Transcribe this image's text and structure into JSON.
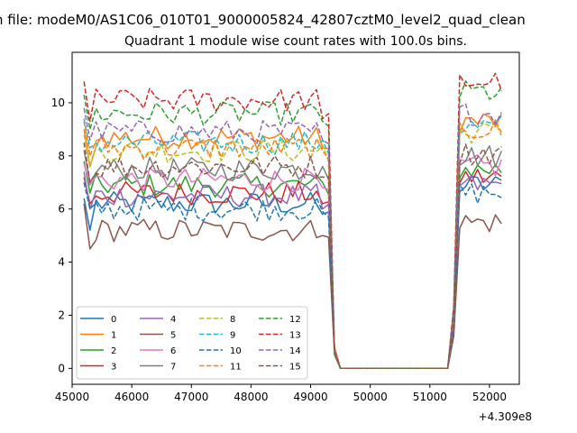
{
  "suptitle": "n file: modeM0/AS1C06_010T01_9000005824_42807cztM0_level2_quad_clean",
  "chart_data": {
    "type": "line",
    "title": "Quadrant 1 module wise count rates with 100.0s bins.",
    "xlabel": "",
    "ylabel": "",
    "x_offset_label": "+4.309e8",
    "xlim": [
      45000,
      52500
    ],
    "ylim": [
      -0.6,
      11.9
    ],
    "xticks": [
      45000,
      46000,
      47000,
      48000,
      49000,
      50000,
      51000,
      52000
    ],
    "xtick_labels": [
      "45000",
      "46000",
      "47000",
      "48000",
      "49000",
      "50000",
      "51000",
      "52000"
    ],
    "yticks": [
      0,
      2,
      4,
      6,
      8,
      10
    ],
    "ytick_labels": [
      "0",
      "2",
      "4",
      "6",
      "8",
      "10"
    ],
    "grid": false,
    "legend_position": "lower-left",
    "legend_columns": 4,
    "x": {
      "start": 45200,
      "step": 100,
      "count": 71
    },
    "series": [
      {
        "name": "0",
        "color": "#1f77b4",
        "dash": "solid",
        "base": 6.2,
        "start": 6.4,
        "dip": 5.2,
        "end": 5.8,
        "after": 6.9
      },
      {
        "name": "1",
        "color": "#ff7f0e",
        "dash": "solid",
        "base": 8.7,
        "start": 9.0,
        "dip": 7.6,
        "end": 8.3,
        "after": 9.3
      },
      {
        "name": "2",
        "color": "#2ca02c",
        "dash": "solid",
        "base": 6.9,
        "start": 7.8,
        "dip": 6.6,
        "end": 7.0,
        "after": 7.5
      },
      {
        "name": "3",
        "color": "#d62728",
        "dash": "solid",
        "base": 6.6,
        "start": 7.2,
        "dip": 6.2,
        "end": 6.2,
        "after": 7.2
      },
      {
        "name": "4",
        "color": "#9467bd",
        "dash": "solid",
        "base": 6.5,
        "start": 7.4,
        "dip": 6.0,
        "end": 6.0,
        "after": 6.9
      },
      {
        "name": "5",
        "color": "#8c564b",
        "dash": "solid",
        "base": 5.2,
        "start": 6.2,
        "dip": 4.5,
        "end": 5.0,
        "after": 5.5
      },
      {
        "name": "6",
        "color": "#e377c2",
        "dash": "solid",
        "base": 7.1,
        "start": 7.7,
        "dip": 6.9,
        "end": 6.8,
        "after": 7.6
      },
      {
        "name": "7",
        "color": "#7f7f7f",
        "dash": "solid",
        "base": 7.5,
        "start": 8.2,
        "dip": 7.0,
        "end": 7.6,
        "after": 8.0
      },
      {
        "name": "8",
        "color": "#bcbd22",
        "dash": "dashed",
        "base": 8.2,
        "start": 8.8,
        "dip": 7.6,
        "end": 8.4,
        "after": 8.9
      },
      {
        "name": "9",
        "color": "#17becf",
        "dash": "dashed",
        "base": 8.5,
        "start": 9.4,
        "dip": 8.3,
        "end": 8.6,
        "after": 9.1
      },
      {
        "name": "10",
        "color": "#1f77b4",
        "dash": "dashed",
        "base": 6.0,
        "start": 7.0,
        "dip": 6.0,
        "end": 5.9,
        "after": 6.6
      },
      {
        "name": "11",
        "color": "#ff7f0e",
        "dash": "dashed",
        "base": 8.3,
        "start": 9.3,
        "dip": 8.0,
        "end": 8.2,
        "after": 9.0
      },
      {
        "name": "12",
        "color": "#2ca02c",
        "dash": "dashed",
        "base": 9.6,
        "start": 10.3,
        "dip": 9.0,
        "end": 9.3,
        "after": 10.4
      },
      {
        "name": "13",
        "color": "#d62728",
        "dash": "dashed",
        "base": 10.1,
        "start": 10.8,
        "dip": 9.3,
        "end": 9.4,
        "after": 10.8
      },
      {
        "name": "14",
        "color": "#9467bd",
        "dash": "dashed",
        "base": 8.9,
        "start": 9.8,
        "dip": 8.6,
        "end": 8.6,
        "after": 9.6
      },
      {
        "name": "15",
        "color": "#8c564b",
        "dash": "dashed",
        "base": 7.6,
        "start": 8.5,
        "dip": 7.0,
        "end": 7.2,
        "after": 8.1
      }
    ]
  }
}
